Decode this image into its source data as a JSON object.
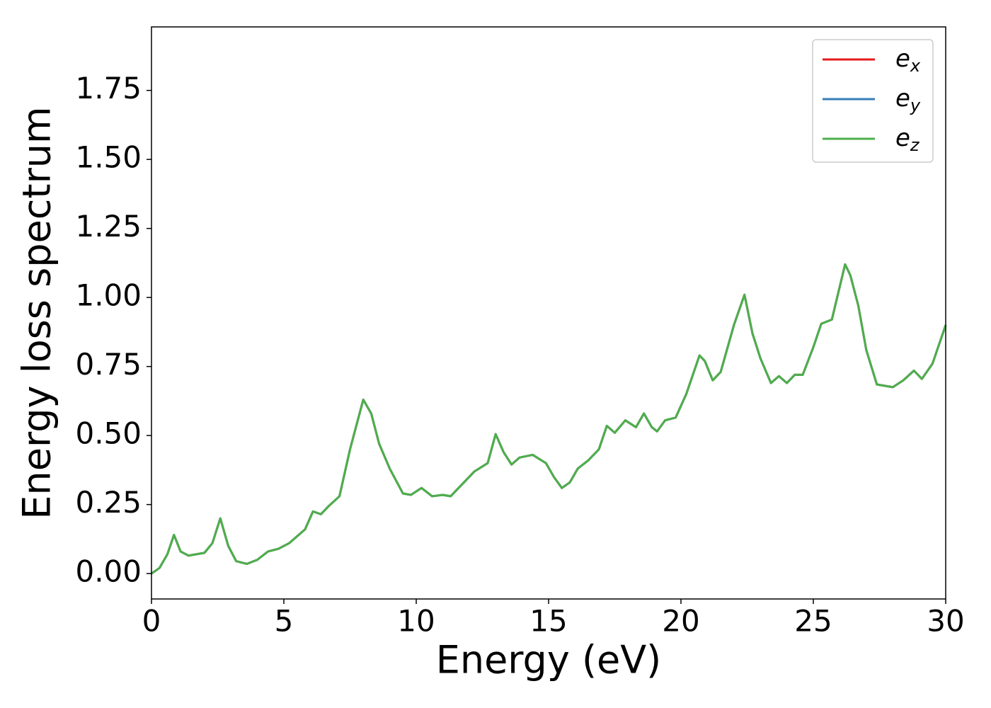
{
  "chart_data": {
    "type": "line",
    "xlabel": "Energy (eV)",
    "ylabel": "Energy loss spectrum",
    "x": [
      0,
      0.3,
      0.6,
      0.85,
      1.1,
      1.4,
      2.0,
      2.3,
      2.6,
      2.9,
      3.2,
      3.6,
      4.0,
      4.4,
      4.8,
      5.2,
      5.8,
      6.1,
      6.4,
      6.7,
      7.1,
      7.5,
      8.0,
      8.3,
      8.6,
      9.0,
      9.5,
      9.8,
      10.2,
      10.6,
      11.0,
      11.3,
      11.8,
      12.2,
      12.7,
      13.0,
      13.3,
      13.6,
      13.9,
      14.4,
      14.9,
      15.2,
      15.5,
      15.8,
      16.1,
      16.5,
      16.9,
      17.2,
      17.5,
      17.9,
      18.3,
      18.6,
      18.9,
      19.1,
      19.4,
      19.8,
      20.2,
      20.7,
      20.9,
      21.2,
      21.5,
      22.0,
      22.4,
      22.7,
      23.0,
      23.4,
      23.7,
      24.0,
      24.3,
      24.6,
      25.0,
      25.3,
      25.7,
      26.2,
      26.4,
      26.7,
      27.0,
      27.4,
      28.0,
      28.4,
      28.8,
      29.1,
      29.5,
      30.0
    ],
    "series": [
      {
        "name": "e",
        "subscript": "x",
        "color": "#e41a1c",
        "values": [
          0,
          0.02,
          0.07,
          0.14,
          0.08,
          0.065,
          0.075,
          0.11,
          0.2,
          0.1,
          0.045,
          0.035,
          0.05,
          0.08,
          0.09,
          0.11,
          0.16,
          0.225,
          0.215,
          0.245,
          0.28,
          0.45,
          0.63,
          0.58,
          0.47,
          0.38,
          0.29,
          0.285,
          0.31,
          0.28,
          0.285,
          0.28,
          0.33,
          0.37,
          0.4,
          0.505,
          0.44,
          0.395,
          0.42,
          0.43,
          0.4,
          0.35,
          0.31,
          0.33,
          0.38,
          0.41,
          0.45,
          0.535,
          0.51,
          0.555,
          0.53,
          0.58,
          0.53,
          0.515,
          0.555,
          0.565,
          0.65,
          0.79,
          0.77,
          0.7,
          0.73,
          0.9,
          1.01,
          0.87,
          0.78,
          0.69,
          0.715,
          0.69,
          0.72,
          0.72,
          0.82,
          0.905,
          0.92,
          1.12,
          1.08,
          0.97,
          0.81,
          0.685,
          0.675,
          0.7,
          0.735,
          0.705,
          0.76,
          0.9
        ]
      },
      {
        "name": "e",
        "subscript": "y",
        "color": "#377eb8",
        "values": [
          0,
          0.02,
          0.07,
          0.14,
          0.08,
          0.065,
          0.075,
          0.11,
          0.2,
          0.1,
          0.045,
          0.035,
          0.05,
          0.08,
          0.09,
          0.11,
          0.16,
          0.225,
          0.215,
          0.245,
          0.28,
          0.45,
          0.63,
          0.58,
          0.47,
          0.38,
          0.29,
          0.285,
          0.31,
          0.28,
          0.285,
          0.28,
          0.33,
          0.37,
          0.4,
          0.505,
          0.44,
          0.395,
          0.42,
          0.43,
          0.4,
          0.35,
          0.31,
          0.33,
          0.38,
          0.41,
          0.45,
          0.535,
          0.51,
          0.555,
          0.53,
          0.58,
          0.53,
          0.515,
          0.555,
          0.565,
          0.65,
          0.79,
          0.77,
          0.7,
          0.73,
          0.9,
          1.01,
          0.87,
          0.78,
          0.69,
          0.715,
          0.69,
          0.72,
          0.72,
          0.82,
          0.905,
          0.92,
          1.12,
          1.08,
          0.97,
          0.81,
          0.685,
          0.675,
          0.7,
          0.735,
          0.705,
          0.76,
          0.9
        ]
      },
      {
        "name": "e",
        "subscript": "z",
        "color": "#4daf4a",
        "values": [
          0,
          0.02,
          0.07,
          0.14,
          0.08,
          0.065,
          0.075,
          0.11,
          0.2,
          0.1,
          0.045,
          0.035,
          0.05,
          0.08,
          0.09,
          0.11,
          0.16,
          0.225,
          0.215,
          0.245,
          0.28,
          0.45,
          0.63,
          0.58,
          0.47,
          0.38,
          0.29,
          0.285,
          0.31,
          0.28,
          0.285,
          0.28,
          0.33,
          0.37,
          0.4,
          0.505,
          0.44,
          0.395,
          0.42,
          0.43,
          0.4,
          0.35,
          0.31,
          0.33,
          0.38,
          0.41,
          0.45,
          0.535,
          0.51,
          0.555,
          0.53,
          0.58,
          0.53,
          0.515,
          0.555,
          0.565,
          0.65,
          0.79,
          0.77,
          0.7,
          0.73,
          0.9,
          1.01,
          0.87,
          0.78,
          0.69,
          0.715,
          0.69,
          0.72,
          0.72,
          0.82,
          0.905,
          0.92,
          1.12,
          1.08,
          0.97,
          0.81,
          0.685,
          0.675,
          0.7,
          0.735,
          0.705,
          0.76,
          0.9
        ]
      }
    ],
    "xlim": [
      0,
      30
    ],
    "xticks": [
      0,
      5,
      10,
      15,
      20,
      25,
      30
    ],
    "ylim": [
      -0.092,
      1.98
    ],
    "yticks": [
      {
        "value": 0,
        "label": "0.00"
      },
      {
        "value": 0.25,
        "label": "0.25"
      },
      {
        "value": 0.5,
        "label": "0.50"
      },
      {
        "value": 0.75,
        "label": "0.75"
      },
      {
        "value": 1,
        "label": "1.00"
      },
      {
        "value": 1.25,
        "label": "1.25"
      },
      {
        "value": 1.5,
        "label": "1.50"
      },
      {
        "value": 1.75,
        "label": "1.75"
      }
    ],
    "legend": "upper right",
    "grid": false
  }
}
